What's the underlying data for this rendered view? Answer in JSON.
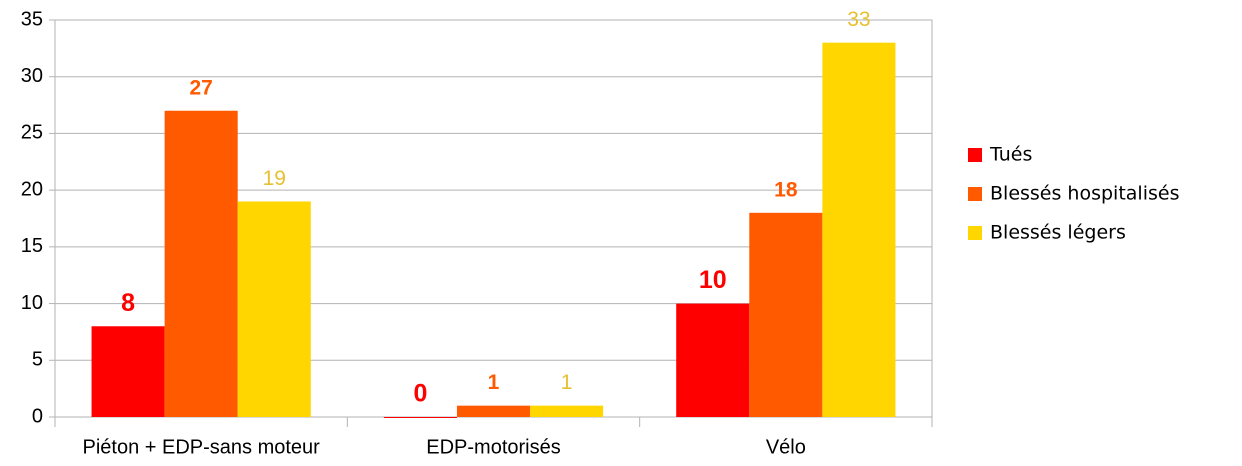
{
  "chart_data": {
    "type": "bar",
    "categories": [
      "Piéton + EDP-sans moteur",
      "EDP-motorisés",
      "Vélo"
    ],
    "series": [
      {
        "name": "Tués",
        "color": "#ff0000",
        "values": [
          8,
          0,
          10
        ]
      },
      {
        "name": "Blessés hospitalisés",
        "color": "#ff5a00",
        "values": [
          27,
          1,
          18
        ]
      },
      {
        "name": "Blessés légers",
        "color": "#ffd600",
        "values": [
          19,
          1,
          33
        ]
      }
    ],
    "ylim": [
      0,
      35
    ],
    "yticks": [
      0,
      5,
      10,
      15,
      20,
      25,
      30,
      35
    ],
    "grid": true,
    "legend": "right"
  }
}
